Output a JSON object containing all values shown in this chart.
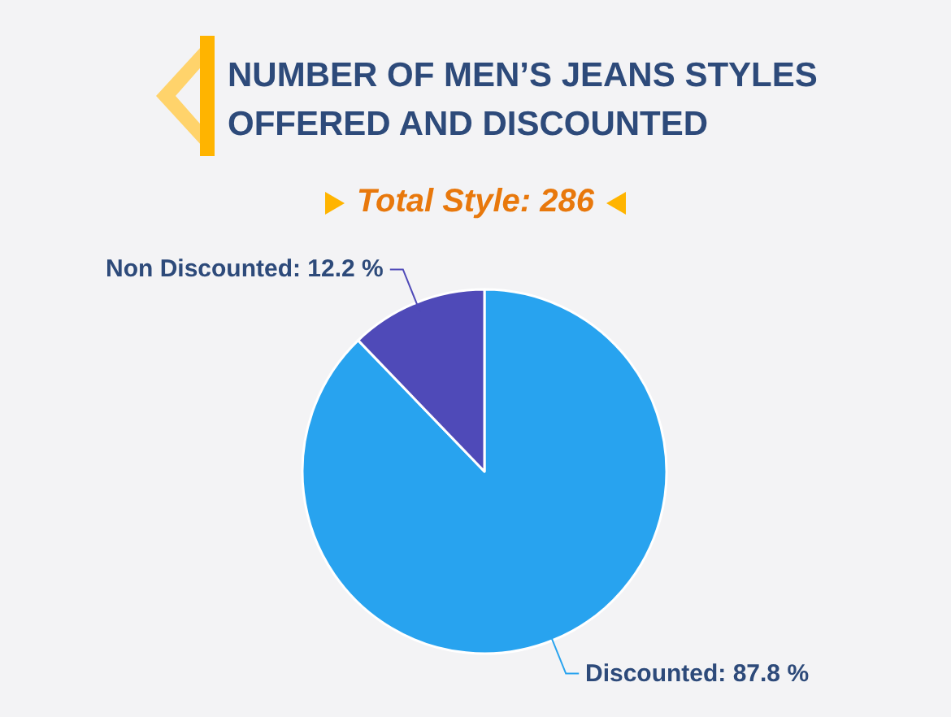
{
  "chart_data": {
    "type": "pie",
    "title": "NUMBER OF MEN’S JEANS STYLES OFFERED AND DISCOUNTED",
    "subtitle": "Total Style: 286",
    "categories": [
      "Discounted",
      "Non Discounted"
    ],
    "values": [
      87.8,
      12.2
    ],
    "colors": [
      "#28a3ef",
      "#4f4ab8"
    ],
    "value_labels": [
      "87.8 %",
      "12.2 %"
    ],
    "legend": false
  }
}
